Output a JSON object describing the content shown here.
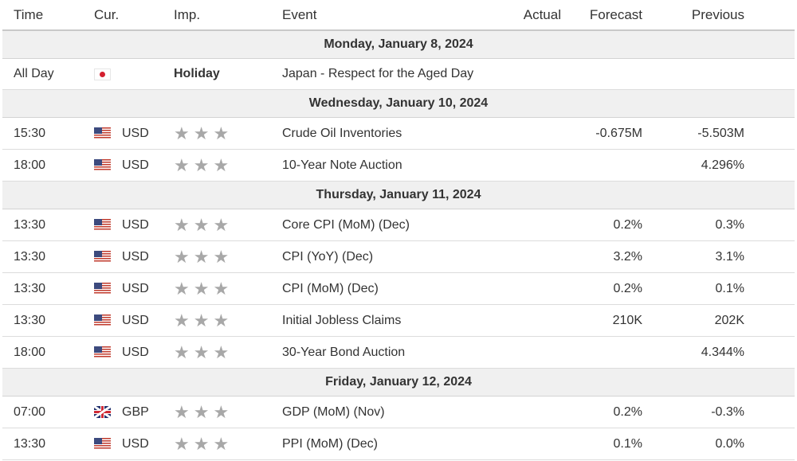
{
  "columns": {
    "time": "Time",
    "currency": "Cur.",
    "importance": "Imp.",
    "event": "Event",
    "actual": "Actual",
    "forecast": "Forecast",
    "previous": "Previous"
  },
  "colors": {
    "star_gray": "#a8a8a8",
    "day_header_bg": "#f0f0f0",
    "border": "#dcdcdc"
  },
  "days": [
    {
      "label": "Monday, January 8, 2024",
      "events": [
        {
          "time": "All Day",
          "flag": "jp-flag-icon",
          "currency": "",
          "importance": "Holiday",
          "event": "Japan - Respect for the Aged Day",
          "actual": "",
          "forecast": "",
          "previous": ""
        }
      ]
    },
    {
      "label": "Wednesday, January 10, 2024",
      "events": [
        {
          "time": "15:30",
          "flag": "us-flag-icon",
          "currency": "USD",
          "importance": "3",
          "event": "Crude Oil Inventories",
          "actual": "",
          "forecast": "-0.675M",
          "previous": "-5.503M"
        },
        {
          "time": "18:00",
          "flag": "us-flag-icon",
          "currency": "USD",
          "importance": "3",
          "event": "10-Year Note Auction",
          "actual": "",
          "forecast": "",
          "previous": "4.296%"
        }
      ]
    },
    {
      "label": "Thursday, January 11, 2024",
      "events": [
        {
          "time": "13:30",
          "flag": "us-flag-icon",
          "currency": "USD",
          "importance": "3",
          "event": "Core CPI (MoM) (Dec)",
          "actual": "",
          "forecast": "0.2%",
          "previous": "0.3%"
        },
        {
          "time": "13:30",
          "flag": "us-flag-icon",
          "currency": "USD",
          "importance": "3",
          "event": "CPI (YoY) (Dec)",
          "actual": "",
          "forecast": "3.2%",
          "previous": "3.1%"
        },
        {
          "time": "13:30",
          "flag": "us-flag-icon",
          "currency": "USD",
          "importance": "3",
          "event": "CPI (MoM) (Dec)",
          "actual": "",
          "forecast": "0.2%",
          "previous": "0.1%"
        },
        {
          "time": "13:30",
          "flag": "us-flag-icon",
          "currency": "USD",
          "importance": "3",
          "event": "Initial Jobless Claims",
          "actual": "",
          "forecast": "210K",
          "previous": "202K"
        },
        {
          "time": "18:00",
          "flag": "us-flag-icon",
          "currency": "USD",
          "importance": "3",
          "event": "30-Year Bond Auction",
          "actual": "",
          "forecast": "",
          "previous": "4.344%"
        }
      ]
    },
    {
      "label": "Friday, January 12, 2024",
      "events": [
        {
          "time": "07:00",
          "flag": "gb-flag-icon",
          "currency": "GBP",
          "importance": "3",
          "event": "GDP (MoM) (Nov)",
          "actual": "",
          "forecast": "0.2%",
          "previous": "-0.3%"
        },
        {
          "time": "13:30",
          "flag": "us-flag-icon",
          "currency": "USD",
          "importance": "3",
          "event": "PPI (MoM) (Dec)",
          "actual": "",
          "forecast": "0.1%",
          "previous": "0.0%"
        }
      ]
    }
  ]
}
